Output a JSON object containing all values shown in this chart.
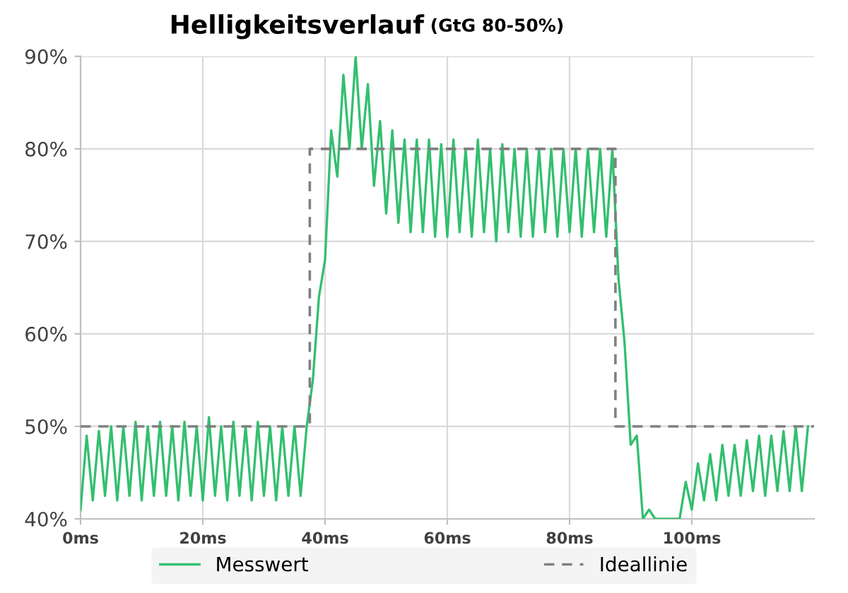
{
  "chart_data": {
    "type": "line",
    "title": "Helligkeitsverlauf",
    "subtitle": "(GtG 80-50%)",
    "xlim": [
      0,
      120
    ],
    "ylim": [
      40,
      90
    ],
    "xticks": [
      {
        "value": 0,
        "label": "0ms"
      },
      {
        "value": 20,
        "label": "20ms"
      },
      {
        "value": 40,
        "label": "40ms"
      },
      {
        "value": 60,
        "label": "60ms"
      },
      {
        "value": 80,
        "label": "80ms"
      },
      {
        "value": 100,
        "label": "100ms"
      }
    ],
    "yticks": [
      {
        "value": 40,
        "label": "40%"
      },
      {
        "value": 50,
        "label": "50%"
      },
      {
        "value": 60,
        "label": "60%"
      },
      {
        "value": 70,
        "label": "70%"
      },
      {
        "value": 80,
        "label": "80%"
      },
      {
        "value": 90,
        "label": "90%"
      }
    ],
    "grid": true,
    "legend": "bottom",
    "series": [
      {
        "name": "Messwert",
        "color": "#33bf6f",
        "line_style": "solid",
        "x": [
          0,
          1,
          2,
          3,
          4,
          5,
          6,
          7,
          8,
          9,
          10,
          11,
          12,
          13,
          14,
          15,
          16,
          17,
          18,
          19,
          20,
          21,
          22,
          23,
          24,
          25,
          26,
          27,
          28,
          29,
          30,
          31,
          32,
          33,
          34,
          35,
          36,
          37,
          38,
          39,
          40,
          41,
          42,
          43,
          44,
          45,
          46,
          47,
          48,
          49,
          50,
          51,
          52,
          53,
          54,
          55,
          56,
          57,
          58,
          59,
          60,
          61,
          62,
          63,
          64,
          65,
          66,
          67,
          68,
          69,
          70,
          71,
          72,
          73,
          74,
          75,
          76,
          77,
          78,
          79,
          80,
          81,
          82,
          83,
          84,
          85,
          86,
          87,
          88,
          89,
          90,
          91,
          92,
          93,
          94,
          95,
          96,
          97,
          98,
          99,
          100,
          101,
          102,
          103,
          104,
          105,
          106,
          107,
          108,
          109,
          110,
          111,
          112,
          113,
          114,
          115,
          116,
          117,
          118,
          119
        ],
        "values": [
          41,
          49,
          42,
          49.5,
          42.5,
          50,
          42,
          50,
          42.5,
          50.5,
          42,
          50,
          42.5,
          50.5,
          42.5,
          50,
          42,
          50.5,
          42.5,
          50,
          42,
          51,
          42.5,
          50,
          42,
          50.5,
          42.5,
          50,
          42,
          50.5,
          42.5,
          50,
          42,
          50,
          42.5,
          50,
          42.5,
          50,
          55,
          64,
          68,
          82,
          77,
          88,
          80,
          90,
          80,
          87,
          76,
          83,
          73,
          82,
          72,
          81,
          71,
          81,
          71,
          81,
          70.5,
          80.5,
          70.5,
          81,
          71,
          80,
          70.5,
          81,
          71,
          80,
          70,
          80.5,
          71,
          80,
          70.5,
          80,
          70.5,
          80,
          71,
          80,
          70.5,
          80,
          71,
          80,
          70.5,
          80,
          71,
          80,
          70.5,
          80,
          66,
          59,
          48,
          49,
          40,
          41,
          40,
          40,
          40,
          40,
          40,
          44,
          41,
          46,
          42,
          47,
          42,
          48,
          42.5,
          48,
          42.5,
          48.5,
          43,
          49,
          42.5,
          49,
          43,
          49.5,
          43,
          50,
          43,
          50
        ]
      },
      {
        "name": "Ideallinie",
        "color": "#808080",
        "line_style": "dashed",
        "x": [
          0,
          37.5,
          37.5,
          87.5,
          87.5,
          120
        ],
        "values": [
          50,
          50,
          80,
          80,
          50,
          50
        ]
      }
    ]
  }
}
